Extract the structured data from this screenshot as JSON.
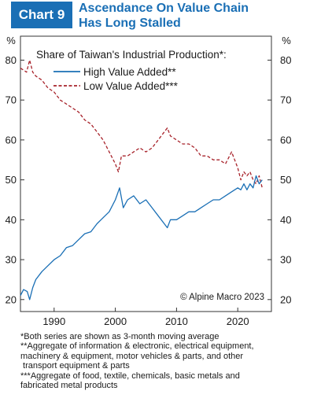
{
  "header": {
    "badge": "Chart 9",
    "title_line1": "Ascendance On Value Chain",
    "title_line2": "Has Long Stalled"
  },
  "chart_data": {
    "type": "line",
    "title": "Share of Taiwan's Industrial Production*:",
    "left_unit": "%",
    "right_unit": "%",
    "xlim": [
      1984.5,
      2025.5
    ],
    "ylim": [
      17,
      86
    ],
    "x_ticks": [
      1990,
      2000,
      2010,
      2020
    ],
    "y_ticks": [
      20,
      30,
      40,
      50,
      60,
      70,
      80
    ],
    "grid": false,
    "legend_position": "top-left",
    "source": "© Alpine Macro 2023",
    "series": [
      {
        "name": "High Value Added**",
        "color": "#1a6fb5",
        "dash": "solid",
        "points": [
          [
            1984.5,
            21
          ],
          [
            1985,
            22.5
          ],
          [
            1985.6,
            22
          ],
          [
            1986,
            20
          ],
          [
            1986.5,
            23
          ],
          [
            1987,
            25
          ],
          [
            1988,
            27
          ],
          [
            1989,
            28.5
          ],
          [
            1990,
            30
          ],
          [
            1991,
            31
          ],
          [
            1992,
            33
          ],
          [
            1993,
            33.5
          ],
          [
            1994,
            35
          ],
          [
            1995,
            36.5
          ],
          [
            1996,
            37
          ],
          [
            1997,
            39
          ],
          [
            1998,
            40.5
          ],
          [
            1999,
            42
          ],
          [
            2000,
            45
          ],
          [
            2000.7,
            48
          ],
          [
            2001.3,
            43
          ],
          [
            2002,
            45
          ],
          [
            2003,
            46
          ],
          [
            2004,
            44
          ],
          [
            2005,
            45
          ],
          [
            2006,
            43
          ],
          [
            2007,
            41
          ],
          [
            2008,
            39
          ],
          [
            2008.5,
            38
          ],
          [
            2009,
            40
          ],
          [
            2010,
            40
          ],
          [
            2011,
            41
          ],
          [
            2012,
            42
          ],
          [
            2013,
            42
          ],
          [
            2014,
            43
          ],
          [
            2015,
            44
          ],
          [
            2016,
            45
          ],
          [
            2017,
            45
          ],
          [
            2018,
            46
          ],
          [
            2019,
            47
          ],
          [
            2020,
            48
          ],
          [
            2020.5,
            47.5
          ],
          [
            2021,
            49
          ],
          [
            2021.5,
            47.5
          ],
          [
            2022,
            49
          ],
          [
            2022.5,
            48
          ],
          [
            2023,
            51
          ],
          [
            2023.5,
            49
          ],
          [
            2024,
            50
          ]
        ]
      },
      {
        "name": "Low Value Added***",
        "color": "#a8232b",
        "dash": "dashed",
        "points": [
          [
            1984.5,
            78
          ],
          [
            1985.5,
            77
          ],
          [
            1986,
            80
          ],
          [
            1986.5,
            77
          ],
          [
            1987,
            76
          ],
          [
            1988,
            75
          ],
          [
            1989,
            73
          ],
          [
            1990,
            72
          ],
          [
            1991,
            70
          ],
          [
            1992,
            69
          ],
          [
            1993,
            68
          ],
          [
            1994,
            67
          ],
          [
            1995,
            65
          ],
          [
            1996,
            64
          ],
          [
            1997,
            62
          ],
          [
            1998,
            60
          ],
          [
            1999,
            57
          ],
          [
            2000,
            54
          ],
          [
            2000.5,
            52
          ],
          [
            2001,
            56
          ],
          [
            2002,
            56
          ],
          [
            2003,
            57
          ],
          [
            2004,
            58
          ],
          [
            2005,
            57
          ],
          [
            2006,
            58
          ],
          [
            2007,
            60
          ],
          [
            2008,
            62
          ],
          [
            2008.5,
            63
          ],
          [
            2009,
            61
          ],
          [
            2010,
            60
          ],
          [
            2011,
            59
          ],
          [
            2012,
            59
          ],
          [
            2013,
            58
          ],
          [
            2014,
            56
          ],
          [
            2015,
            56
          ],
          [
            2016,
            55
          ],
          [
            2017,
            55
          ],
          [
            2018,
            54
          ],
          [
            2019,
            57
          ],
          [
            2020,
            53
          ],
          [
            2020.5,
            50
          ],
          [
            2021,
            52
          ],
          [
            2021.5,
            51
          ],
          [
            2022,
            52
          ],
          [
            2022.5,
            50
          ],
          [
            2023,
            49
          ],
          [
            2023.5,
            51
          ],
          [
            2024,
            48
          ]
        ]
      }
    ]
  },
  "footnotes": [
    "*Both series are shown as 3-month moving average",
    "**Aggregate of information & electronic, electrical equipment,",
    "machinery & equipment, motor vehicles & parts, and other",
    " transport equipment & parts",
    "***Aggregate of food, textile, chemicals, basic metals and",
    "fabricated metal products"
  ]
}
